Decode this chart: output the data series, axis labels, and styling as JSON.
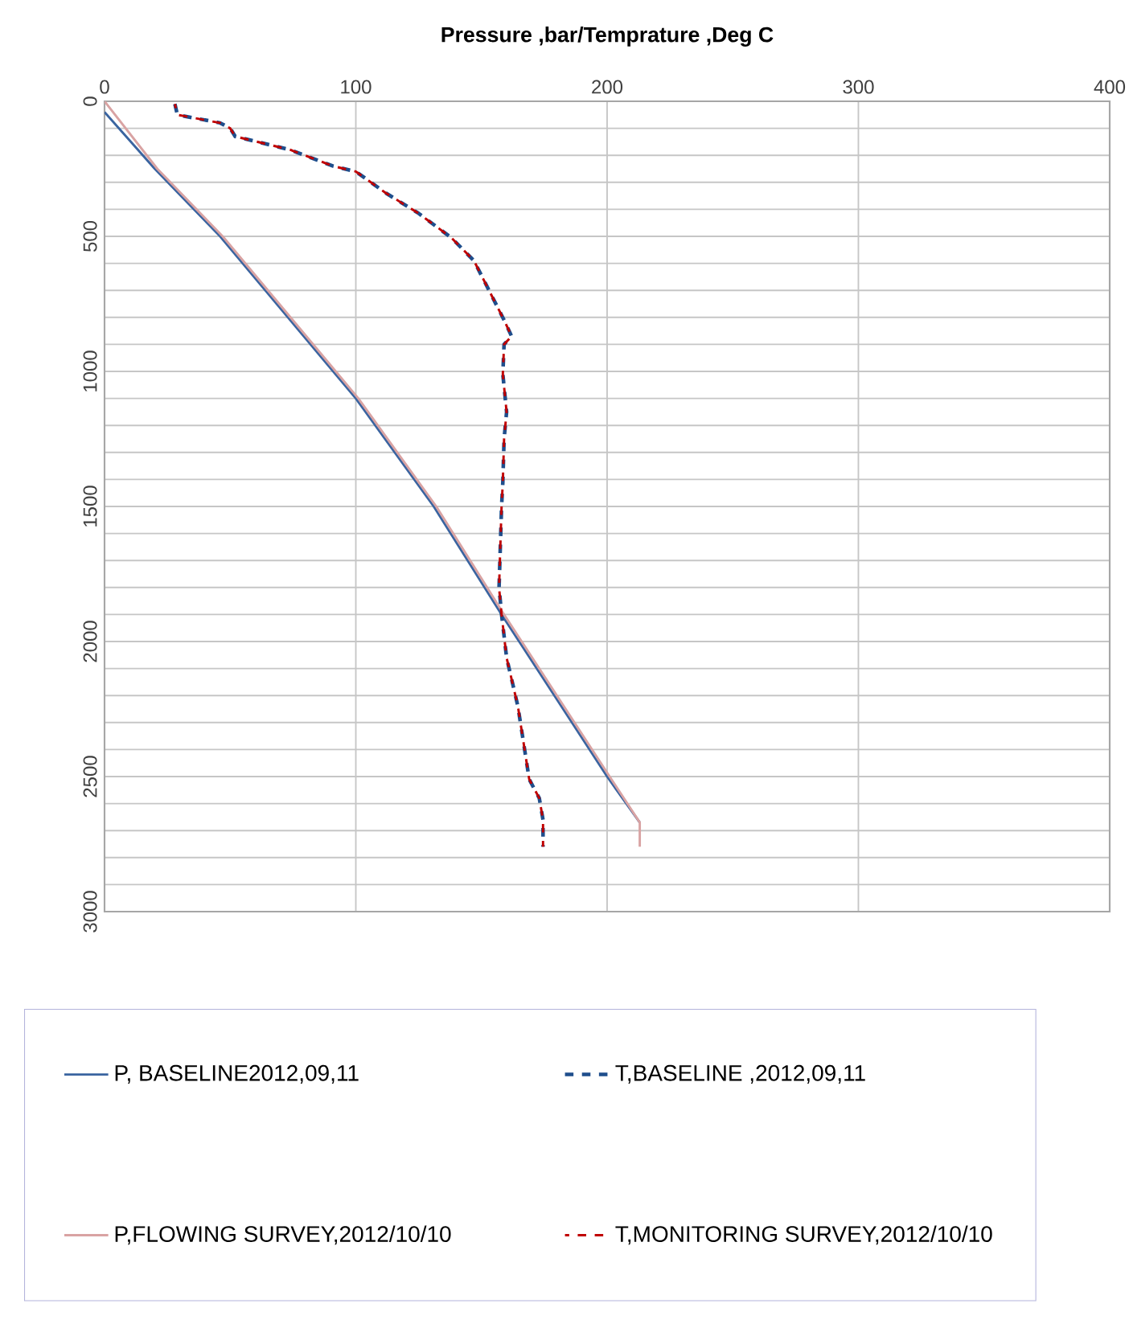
{
  "chart_data": {
    "type": "line",
    "title": "Pressure ,bar/Temprature ,Deg C",
    "xlim": [
      0,
      400
    ],
    "xticks": [
      0,
      100,
      200,
      300,
      400
    ],
    "ylim": [
      3000,
      0
    ],
    "yticks": [
      0,
      {
        "value": 100,
        "label": null
      },
      {
        "value": 200,
        "label": null
      },
      {
        "value": 300,
        "label": null
      },
      {
        "value": 400,
        "label": null
      },
      500,
      {
        "value": 600,
        "label": null
      },
      {
        "value": 700,
        "label": null
      },
      {
        "value": 800,
        "label": null
      },
      {
        "value": 900,
        "label": null
      },
      1000,
      {
        "value": 1100,
        "label": null
      },
      {
        "value": 1200,
        "label": null
      },
      {
        "value": 1300,
        "label": null
      },
      {
        "value": 1400,
        "label": null
      },
      1500,
      {
        "value": 1600,
        "label": null
      },
      {
        "value": 1700,
        "label": null
      },
      {
        "value": 1800,
        "label": null
      },
      {
        "value": 1900,
        "label": null
      },
      2000,
      {
        "value": 2100,
        "label": null
      },
      {
        "value": 2200,
        "label": null
      },
      {
        "value": 2300,
        "label": null
      },
      {
        "value": 2400,
        "label": null
      },
      2500,
      {
        "value": 2600,
        "label": null
      },
      {
        "value": 2700,
        "label": null
      },
      {
        "value": 2800,
        "label": null
      },
      {
        "value": 2900,
        "label": null
      },
      3000
    ],
    "grid": true,
    "legend": "bottom",
    "series": [
      {
        "name": "P, BASELINE2012,09,11",
        "color": "#3a64a0",
        "line_style": "solid",
        "x": [
          0,
          20,
          46,
          91,
          100,
          131,
          158,
          165,
          200,
          213
        ],
        "values": [
          40,
          250,
          500,
          1000,
          1100,
          1500,
          1900,
          2000,
          2500,
          2670
        ]
      },
      {
        "name": "T,BASELINE ,2012,09,11",
        "color": "#1f4e8c",
        "line_style": "dashed",
        "x": [
          28,
          29,
          46,
          50,
          52,
          74,
          91,
          100,
          112,
          125,
          138,
          147,
          153,
          159,
          162,
          159,
          158.5,
          160,
          159,
          158.5,
          158,
          157,
          158,
          160,
          164.5,
          169,
          173,
          174.5,
          174.5
        ],
        "values": [
          10,
          50,
          80,
          100,
          130,
          180,
          240,
          260,
          340,
          415,
          505,
          590,
          700,
          810,
          870,
          900,
          1010,
          1150,
          1250,
          1410,
          1500,
          1800,
          1900,
          2060,
          2240,
          2510,
          2580,
          2660,
          2760
        ]
      },
      {
        "name": "P,FLOWING SURVEY,2012/10/10",
        "color": "#d9a3a3",
        "line_style": "solid",
        "x": [
          0,
          21,
          47,
          92,
          101,
          132,
          159,
          166,
          201,
          213,
          213
        ],
        "values": [
          0,
          250,
          500,
          1000,
          1100,
          1500,
          1900,
          2000,
          2500,
          2670,
          2760
        ]
      },
      {
        "name": "T,MONITORING SURVEY,2012/10/10",
        "color": "#c00000",
        "line_style": "dashed",
        "x": [
          28,
          29,
          46,
          50,
          52,
          74,
          91,
          100,
          112,
          125,
          138,
          147,
          153,
          159,
          162,
          159,
          158.5,
          160,
          159,
          158.5,
          158,
          157,
          158,
          160,
          164.5,
          169,
          173,
          174.5,
          174.5
        ],
        "values": [
          10,
          50,
          80,
          100,
          130,
          180,
          240,
          260,
          340,
          415,
          505,
          590,
          700,
          810,
          870,
          900,
          1010,
          1150,
          1250,
          1410,
          1500,
          1800,
          1900,
          2060,
          2240,
          2510,
          2580,
          2660,
          2760
        ]
      }
    ]
  }
}
